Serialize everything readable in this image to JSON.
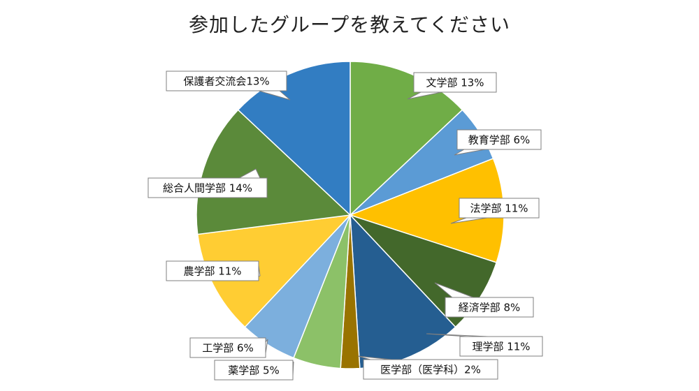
{
  "chart_data": {
    "type": "pie",
    "title": "参加したグループを教えてください",
    "slices": [
      {
        "label": "文学部 13%",
        "value": 13,
        "color": "#70ad47"
      },
      {
        "label": "教育学部 6%",
        "value": 6,
        "color": "#5b9bd5"
      },
      {
        "label": "法学部 11%",
        "value": 11,
        "color": "#ffc000"
      },
      {
        "label": "経済学部 8%",
        "value": 8,
        "color": "#43682b"
      },
      {
        "label": "理学部 11%",
        "value": 11,
        "color": "#255e91"
      },
      {
        "label": "医学部（医学科）2%",
        "value": 2,
        "color": "#997300"
      },
      {
        "label": "薬学部 5%",
        "value": 5,
        "color": "#8cc168"
      },
      {
        "label": "工学部 6%",
        "value": 6,
        "color": "#7cafdd"
      },
      {
        "label": "農学部 11%",
        "value": 11,
        "color": "#ffcd33"
      },
      {
        "label": "総合人間学部 14%",
        "value": 14,
        "color": "#5b8a3a"
      },
      {
        "label": "保護者交流会13%",
        "value": 13,
        "color": "#327dc2"
      }
    ]
  }
}
